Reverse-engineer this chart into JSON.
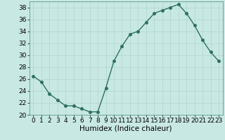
{
  "x": [
    0,
    1,
    2,
    3,
    4,
    5,
    6,
    7,
    8,
    9,
    10,
    11,
    12,
    13,
    14,
    15,
    16,
    17,
    18,
    19,
    20,
    21,
    22,
    23
  ],
  "y": [
    26.5,
    25.5,
    23.5,
    22.5,
    21.5,
    21.5,
    21.0,
    20.5,
    20.5,
    24.5,
    29.0,
    31.5,
    33.5,
    34.0,
    35.5,
    37.0,
    37.5,
    38.0,
    38.5,
    37.0,
    35.0,
    32.5,
    30.5,
    29.0
  ],
  "line_color": "#2e7060",
  "marker": "o",
  "markersize": 2.5,
  "linewidth": 1.0,
  "bg_color": "#c8e8e4",
  "grid_color": "#b0d4d0",
  "xlabel": "Humidex (Indice chaleur)",
  "ylim": [
    20,
    39
  ],
  "yticks": [
    20,
    22,
    24,
    26,
    28,
    30,
    32,
    34,
    36,
    38
  ],
  "xlim": [
    -0.5,
    23.5
  ],
  "xticks": [
    0,
    1,
    2,
    3,
    4,
    5,
    6,
    7,
    8,
    9,
    10,
    11,
    12,
    13,
    14,
    15,
    16,
    17,
    18,
    19,
    20,
    21,
    22,
    23
  ],
  "xlabel_fontsize": 7.5,
  "tick_fontsize": 6.5
}
